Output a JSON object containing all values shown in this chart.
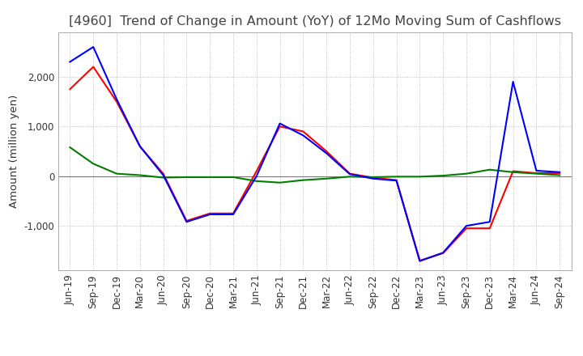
{
  "title": "[4960]  Trend of Change in Amount (YoY) of 12Mo Moving Sum of Cashflows",
  "ylabel": "Amount (million yen)",
  "x_labels": [
    "Jun-19",
    "Sep-19",
    "Dec-19",
    "Mar-20",
    "Jun-20",
    "Sep-20",
    "Dec-20",
    "Mar-21",
    "Jun-21",
    "Sep-21",
    "Dec-21",
    "Mar-22",
    "Jun-22",
    "Sep-22",
    "Dec-22",
    "Mar-23",
    "Jun-23",
    "Sep-23",
    "Dec-23",
    "Mar-24",
    "Jun-24",
    "Sep-24"
  ],
  "operating": [
    1750,
    2200,
    1500,
    600,
    50,
    -900,
    -750,
    -750,
    100,
    1000,
    900,
    500,
    50,
    -30,
    -80,
    -1700,
    -1550,
    -1050,
    -1050,
    100,
    60,
    60
  ],
  "investing": [
    580,
    250,
    50,
    20,
    -30,
    -20,
    -20,
    -20,
    -100,
    -130,
    -80,
    -50,
    -10,
    -20,
    -10,
    -10,
    10,
    50,
    130,
    80,
    50,
    20
  ],
  "free": [
    2300,
    2600,
    1550,
    600,
    20,
    -920,
    -770,
    -770,
    0,
    1060,
    820,
    460,
    40,
    -50,
    -90,
    -1710,
    -1540,
    -1000,
    -920,
    1900,
    110,
    80
  ],
  "operating_color": "#ff0000",
  "investing_color": "#008000",
  "free_color": "#0000ff",
  "background_color": "#ffffff",
  "grid_color": "#b0b0b0",
  "title_color": "#444444",
  "ylim": [
    -1900,
    2900
  ],
  "yticks": [
    -1000,
    0,
    1000,
    2000
  ],
  "title_fontsize": 11.5,
  "label_fontsize": 9.5,
  "tick_fontsize": 8.5
}
